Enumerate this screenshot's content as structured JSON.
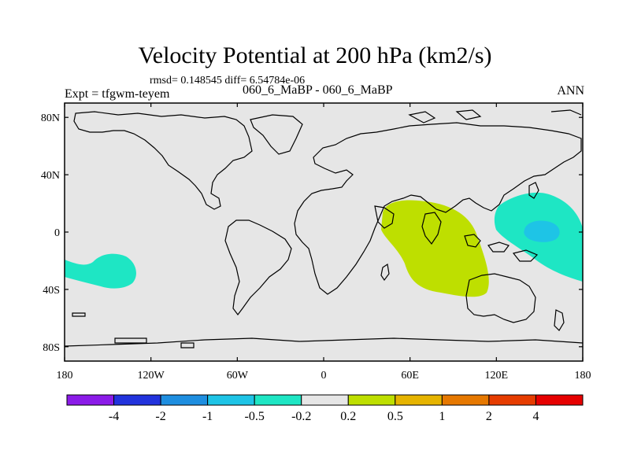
{
  "header": {
    "title": "Velocity Potential at 200 hPa (km2/s)",
    "stats": "rmsd= 0.148545 diff= 6.54784e-06",
    "experiment": "Expt = tfgwm-teyem",
    "case": "060_6_MaBP - 060_6_MaBP",
    "season": "ANN"
  },
  "map": {
    "lon_range": [
      180,
      180
    ],
    "lat_range": [
      -90,
      90
    ],
    "lat_ticks": [
      {
        "value": 80,
        "label": "80N"
      },
      {
        "value": 40,
        "label": "40N"
      },
      {
        "value": 0,
        "label": "0"
      },
      {
        "value": -40,
        "label": "40S"
      },
      {
        "value": -80,
        "label": "80S"
      }
    ],
    "lon_ticks": [
      {
        "value": 180,
        "label": "180"
      },
      {
        "value": 240,
        "label": "120W"
      },
      {
        "value": 300,
        "label": "60W"
      },
      {
        "value": 360,
        "label": "0"
      },
      {
        "value": 420,
        "label": "60E"
      },
      {
        "value": 480,
        "label": "120E"
      },
      {
        "value": 540,
        "label": "180"
      }
    ],
    "background_color": "#e6e6e6"
  },
  "colorbar": {
    "colors": [
      "#8b1be8",
      "#2233dd",
      "#1e8ee0",
      "#1ec4e6",
      "#1ee6c4",
      "#e6e6e6",
      "#bedf00",
      "#e6b400",
      "#e67800",
      "#e63c00",
      "#e60000"
    ],
    "labels": [
      "-4",
      "-2",
      "-1",
      "-0.5",
      "-0.2",
      "0.2",
      "0.5",
      "1",
      "2",
      "4"
    ]
  },
  "chart_data": {
    "type": "contour-map",
    "title": "Velocity Potential at 200 hPa (km2/s)",
    "levels": [
      -4,
      -2,
      -1,
      -0.5,
      -0.2,
      0.2,
      0.5,
      1,
      2,
      4
    ],
    "regions": [
      {
        "name": "positive-anomaly-indian-ocean",
        "range": "0.2 to 0.5",
        "lon_range": [
          40,
          120
        ],
        "lat_range": [
          -45,
          20
        ]
      },
      {
        "name": "negative-anomaly-west-pacific",
        "range": "-0.5 to -0.2",
        "lon_range": [
          120,
          180
        ],
        "lat_range": [
          -35,
          30
        ]
      },
      {
        "name": "negative-anomaly-west-pacific-core",
        "range": "-1 to -0.5",
        "lon_range": [
          140,
          160
        ],
        "lat_range": [
          -5,
          5
        ]
      },
      {
        "name": "negative-anomaly-south-pacific",
        "range": "-0.5 to -0.2",
        "lon_range": [
          180,
          230
        ],
        "lat_range": [
          -40,
          -15
        ]
      }
    ]
  }
}
